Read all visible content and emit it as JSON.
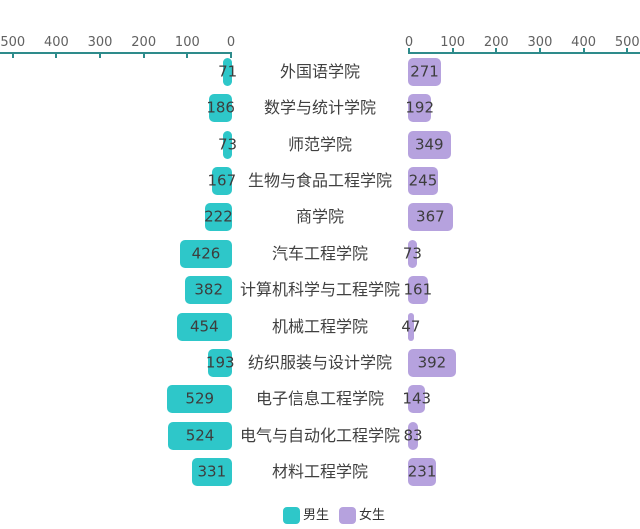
{
  "chart_data": {
    "type": "bar",
    "subtype": "diverging-horizontal",
    "title": "",
    "categories": [
      "外国语学院",
      "数学与统计学院",
      "师范学院",
      "生物与食品工程学院",
      "商学院",
      "汽车工程学院",
      "计算机科学与工程学院",
      "机械工程学院",
      "纺织服装与设计学院",
      "电子信息工程学院",
      "电气与自动化工程学院",
      "材料工程学院"
    ],
    "series": [
      {
        "name": "男生",
        "side": "left",
        "color": "#2ec7c9",
        "values": [
          71,
          186,
          73,
          167,
          222,
          426,
          382,
          454,
          193,
          529,
          524,
          331
        ]
      },
      {
        "name": "女生",
        "side": "right",
        "color": "#b6a2de",
        "values": [
          271,
          192,
          349,
          245,
          367,
          73,
          161,
          47,
          392,
          143,
          83,
          231
        ]
      }
    ],
    "left_axis_ticks": [
      "500",
      "400",
      "300",
      "200",
      "100",
      "0"
    ],
    "right_axis_ticks": [
      "0",
      "100",
      "200",
      "300",
      "400",
      "500"
    ],
    "axis_range": [
      0,
      500
    ],
    "grid": false,
    "legend": {
      "position": "bottom",
      "items": [
        {
          "label": "男生",
          "color": "#2ec7c9"
        },
        {
          "label": "女生",
          "color": "#b6a2de"
        }
      ]
    }
  },
  "style": {
    "background": "#ffffff",
    "male_bar_color": "#2ec7c9",
    "female_bar_color": "#b6a2de",
    "axis_line_color": "#2e8b8b",
    "tick_label_color": "#616161",
    "value_label_color": "#3d3d3d",
    "category_label_color": "#404040",
    "legend_text_color": "#333333"
  }
}
